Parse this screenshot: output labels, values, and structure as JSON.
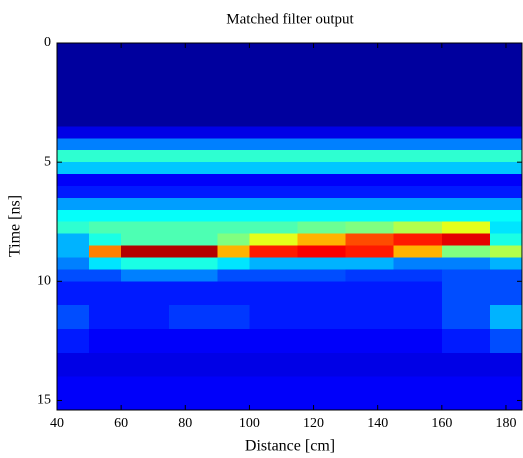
{
  "chart_data": {
    "type": "heatmap",
    "title": "Matched filter output",
    "x_label": "Distance [cm]",
    "y_label": "Time [ns]",
    "colormap": "jet",
    "y_reversed": true,
    "xlim": [
      40,
      185
    ],
    "ylim": [
      0,
      15.4
    ],
    "xticks": [
      40,
      60,
      80,
      100,
      120,
      140,
      160,
      180
    ],
    "yticks": [
      0,
      5,
      10,
      15
    ],
    "x_edges": [
      40,
      50,
      60,
      75,
      90,
      100,
      115,
      130,
      145,
      160,
      175,
      185
    ],
    "y_edges": [
      0,
      3.5,
      4,
      4.5,
      5,
      5.5,
      6,
      6.5,
      7,
      7.5,
      8,
      8.5,
      9,
      9.5,
      10,
      11,
      12,
      13,
      14,
      15.4
    ],
    "z": [
      [
        0.03,
        0.03,
        0.03,
        0.03,
        0.03,
        0.03,
        0.03,
        0.03,
        0.03,
        0.03,
        0.03
      ],
      [
        0.1,
        0.1,
        0.1,
        0.1,
        0.1,
        0.1,
        0.1,
        0.1,
        0.1,
        0.1,
        0.1
      ],
      [
        0.25,
        0.25,
        0.25,
        0.25,
        0.25,
        0.25,
        0.25,
        0.25,
        0.25,
        0.25,
        0.25
      ],
      [
        0.42,
        0.42,
        0.42,
        0.42,
        0.42,
        0.42,
        0.42,
        0.42,
        0.42,
        0.42,
        0.42
      ],
      [
        0.32,
        0.32,
        0.32,
        0.32,
        0.32,
        0.32,
        0.32,
        0.32,
        0.32,
        0.32,
        0.32
      ],
      [
        0.12,
        0.12,
        0.12,
        0.12,
        0.12,
        0.12,
        0.12,
        0.12,
        0.12,
        0.12,
        0.12
      ],
      [
        0.15,
        0.15,
        0.15,
        0.15,
        0.15,
        0.15,
        0.15,
        0.15,
        0.15,
        0.15,
        0.15
      ],
      [
        0.28,
        0.28,
        0.28,
        0.28,
        0.28,
        0.28,
        0.28,
        0.28,
        0.28,
        0.28,
        0.28
      ],
      [
        0.38,
        0.38,
        0.38,
        0.38,
        0.38,
        0.38,
        0.38,
        0.38,
        0.38,
        0.38,
        0.38
      ],
      [
        0.42,
        0.45,
        0.45,
        0.45,
        0.45,
        0.45,
        0.48,
        0.5,
        0.55,
        0.6,
        0.35
      ],
      [
        0.3,
        0.4,
        0.45,
        0.45,
        0.5,
        0.6,
        0.7,
        0.8,
        0.85,
        0.9,
        0.4
      ],
      [
        0.3,
        0.75,
        0.95,
        0.95,
        0.7,
        0.85,
        0.88,
        0.85,
        0.7,
        0.5,
        0.55
      ],
      [
        0.25,
        0.35,
        0.4,
        0.4,
        0.35,
        0.3,
        0.3,
        0.3,
        0.25,
        0.25,
        0.3
      ],
      [
        0.2,
        0.2,
        0.25,
        0.25,
        0.2,
        0.2,
        0.2,
        0.18,
        0.18,
        0.2,
        0.2
      ],
      [
        0.15,
        0.15,
        0.15,
        0.15,
        0.15,
        0.15,
        0.15,
        0.15,
        0.15,
        0.2,
        0.2
      ],
      [
        0.2,
        0.15,
        0.15,
        0.18,
        0.18,
        0.15,
        0.15,
        0.15,
        0.15,
        0.2,
        0.3
      ],
      [
        0.15,
        0.12,
        0.12,
        0.12,
        0.12,
        0.12,
        0.12,
        0.12,
        0.12,
        0.15,
        0.2
      ],
      [
        0.1,
        0.1,
        0.1,
        0.1,
        0.1,
        0.1,
        0.1,
        0.1,
        0.1,
        0.1,
        0.1
      ],
      [
        0.12,
        0.12,
        0.12,
        0.12,
        0.12,
        0.12,
        0.12,
        0.12,
        0.12,
        0.12,
        0.12
      ]
    ]
  }
}
